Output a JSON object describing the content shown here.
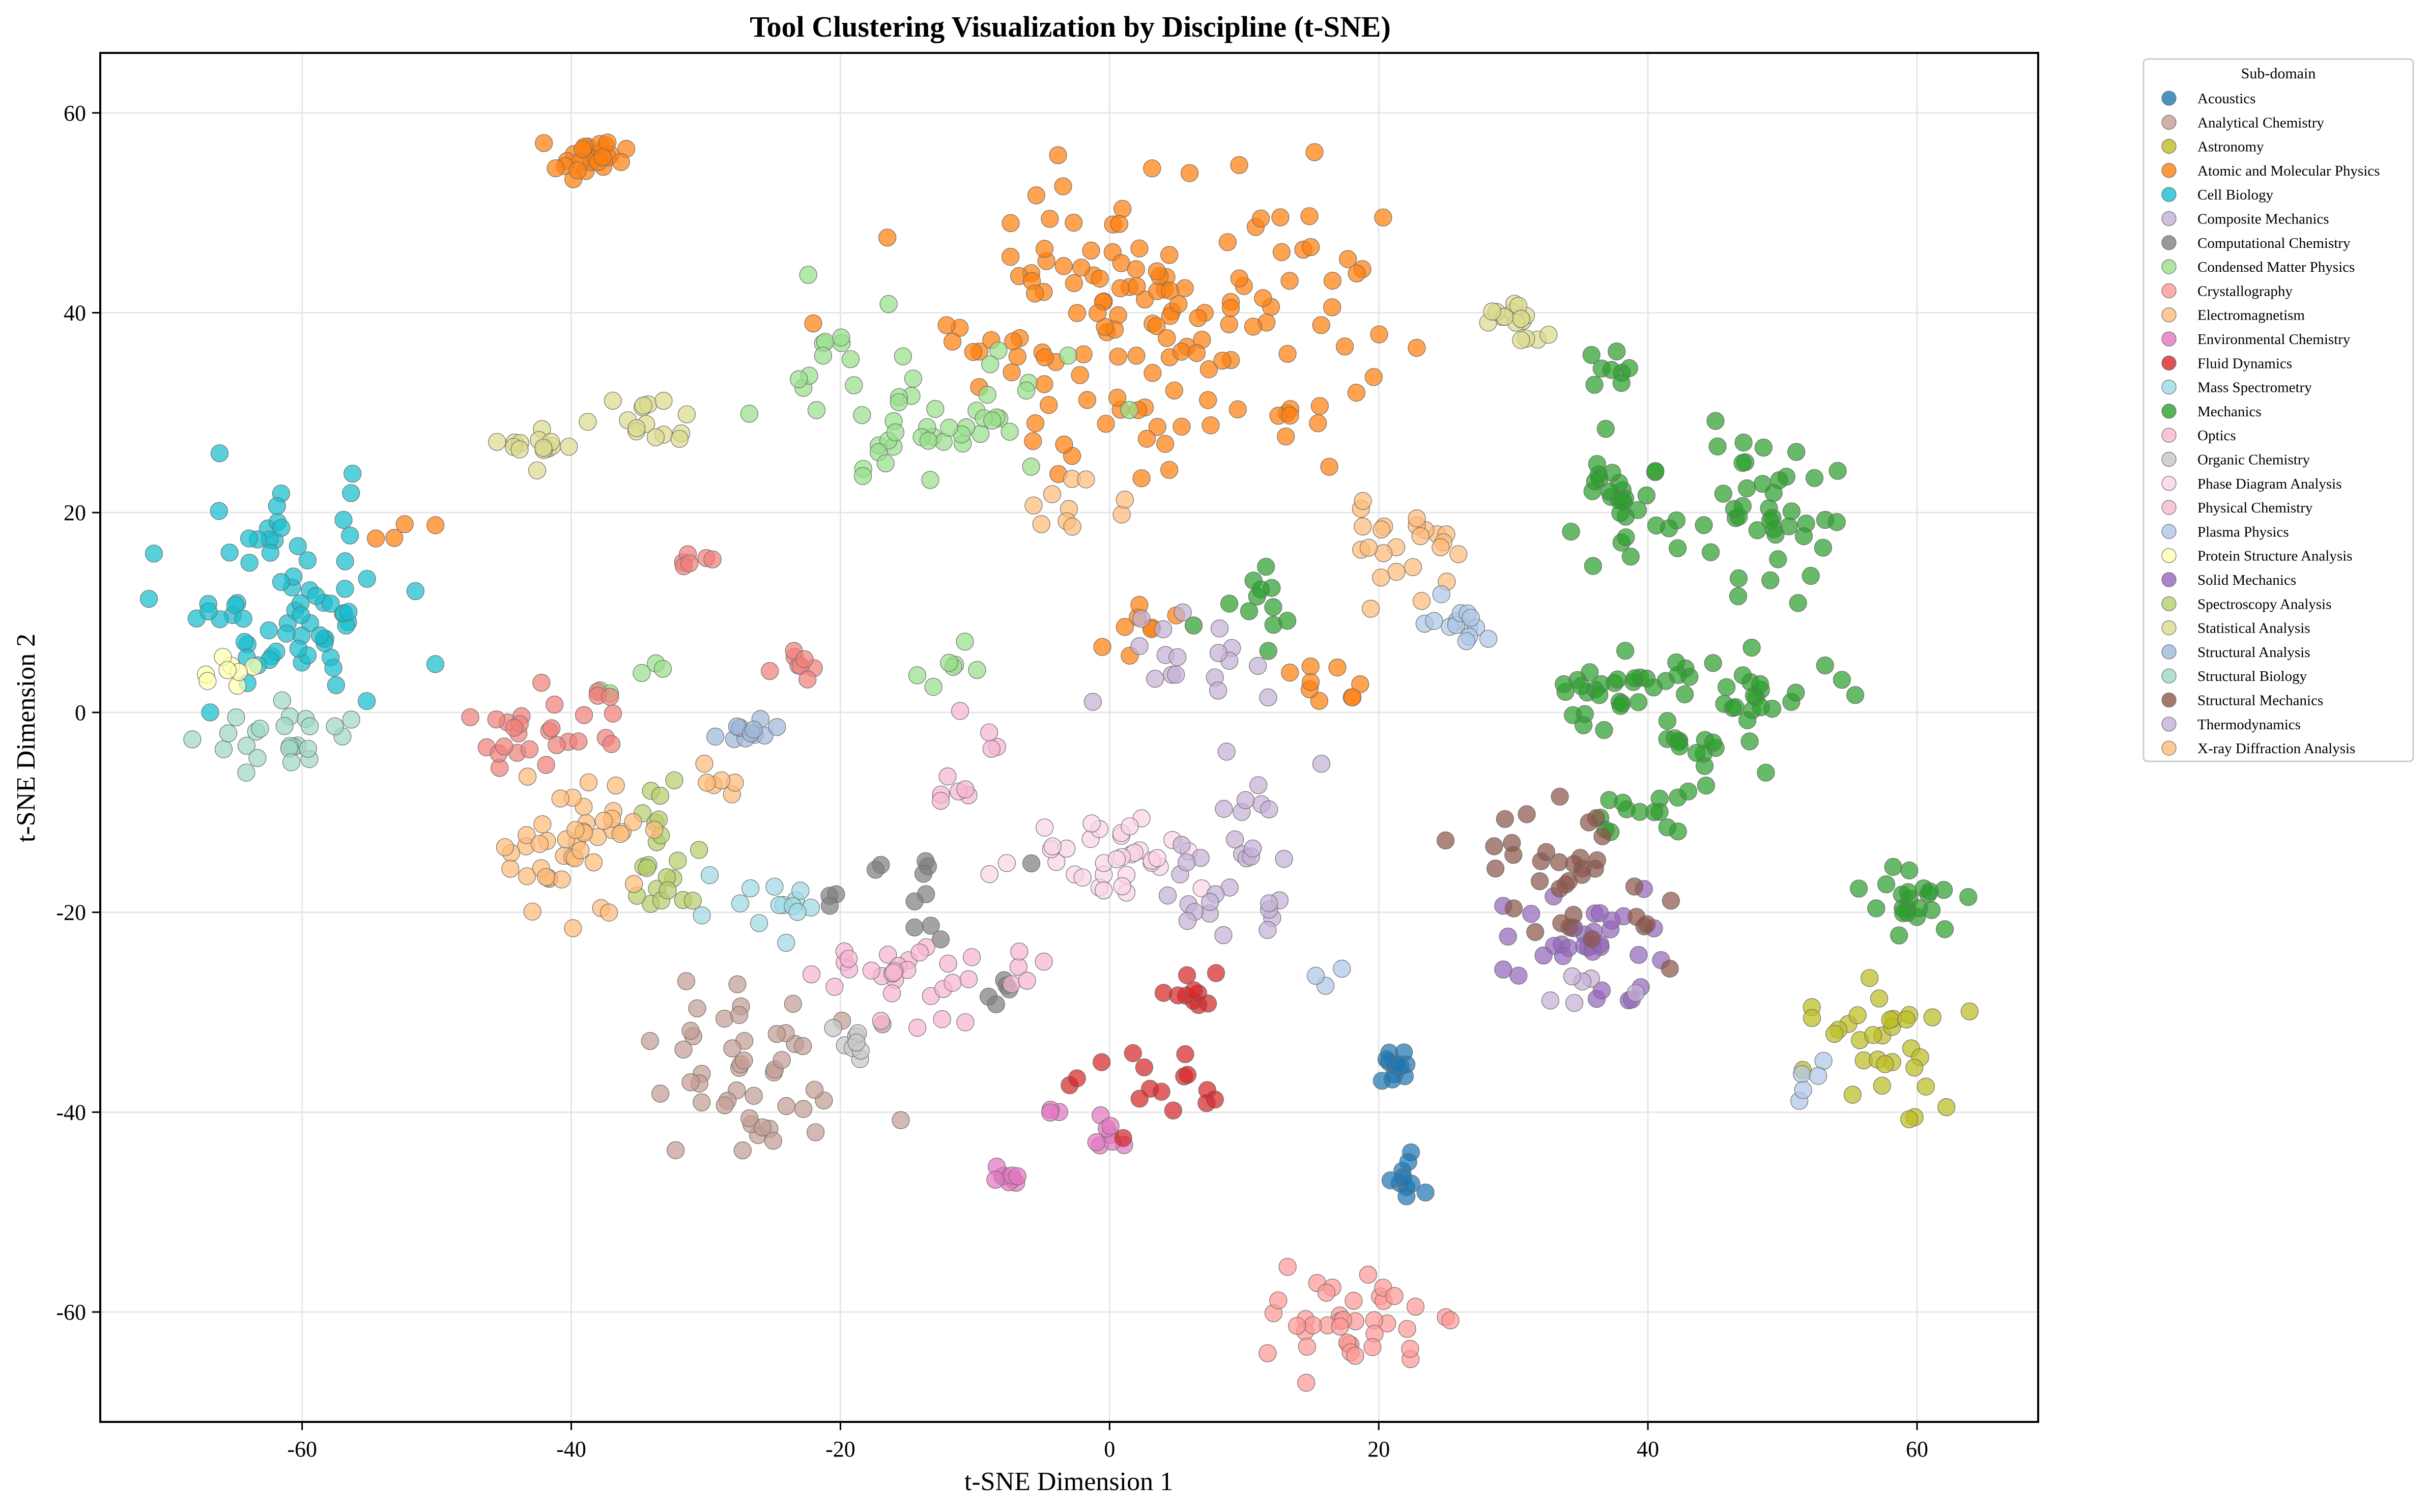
{
  "chart_data": {
    "type": "scatter",
    "title": "Tool Clustering Visualization by Discipline (t-SNE)",
    "xlabel": "t-SNE Dimension 1",
    "ylabel": "t-SNE Dimension 2",
    "xlim": [
      -75,
      69
    ],
    "ylim": [
      -71,
      66
    ],
    "xticks": [
      -60,
      -40,
      -20,
      0,
      20,
      40,
      60
    ],
    "yticks": [
      -60,
      -40,
      -20,
      0,
      20,
      40,
      60
    ],
    "grid": true,
    "legend": {
      "title": "Sub-domain",
      "placement": "outside-top-right"
    },
    "series": [
      {
        "name": "Acoustics",
        "color": "#1f77b4",
        "clusters": [
          {
            "cx": 21.5,
            "cy": -35.5,
            "sx": 1.0,
            "sy": 0.9,
            "n": 12
          },
          {
            "cx": 21.5,
            "cy": -47.0,
            "sx": 0.9,
            "sy": 1.0,
            "n": 10
          }
        ]
      },
      {
        "name": "Analytical Chemistry",
        "color": "#c49c94",
        "clusters": [
          {
            "cx": -26,
            "cy": -38,
            "sx": 4.5,
            "sy": 3.5,
            "n": 40
          },
          {
            "cx": -28,
            "cy": -29,
            "sx": 2.0,
            "sy": 1.5,
            "n": 8
          }
        ]
      },
      {
        "name": "Astronomy",
        "color": "#bcbd22",
        "clusters": [
          {
            "cx": 57,
            "cy": -34,
            "sx": 2.6,
            "sy": 3.5,
            "n": 32
          }
        ]
      },
      {
        "name": "Atomic and Molecular Physics",
        "color": "#ff7f0e",
        "clusters": [
          {
            "cx": 4,
            "cy": 40,
            "sx": 8.0,
            "sy": 8.0,
            "n": 150
          },
          {
            "cx": -38.5,
            "cy": 55.5,
            "sx": 1.3,
            "sy": 0.9,
            "n": 28
          },
          {
            "cx": -53,
            "cy": 18.5,
            "sx": 1.2,
            "sy": 0.8,
            "n": 4
          },
          {
            "cx": 2,
            "cy": 8,
            "sx": 1.5,
            "sy": 1.5,
            "n": 8
          },
          {
            "cx": 16,
            "cy": 3,
            "sx": 1.8,
            "sy": 1.4,
            "n": 9
          }
        ]
      },
      {
        "name": "Cell Biology",
        "color": "#17becf",
        "clusters": [
          {
            "cx": -61,
            "cy": 11,
            "sx": 4.2,
            "sy": 5.5,
            "n": 75
          }
        ]
      },
      {
        "name": "Composite Mechanics",
        "color": "#c5b0d5",
        "clusters": [
          {
            "cx": 5,
            "cy": 5,
            "sx": 2.5,
            "sy": 3.0,
            "n": 18
          },
          {
            "cx": 10,
            "cy": -8,
            "sx": 2.5,
            "sy": 2.5,
            "n": 12
          }
        ]
      },
      {
        "name": "Computational Chemistry",
        "color": "#7f7f7f",
        "clusters": [
          {
            "cx": -16,
            "cy": -18,
            "sx": 3.5,
            "sy": 3.0,
            "n": 14
          },
          {
            "cx": -9,
            "cy": -28,
            "sx": 1.5,
            "sy": 1.5,
            "n": 5
          }
        ]
      },
      {
        "name": "Condensed Matter Physics",
        "color": "#98df8a",
        "clusters": [
          {
            "cx": -14,
            "cy": 29,
            "sx": 6.0,
            "sy": 4.0,
            "n": 45
          },
          {
            "cx": -21,
            "cy": 37,
            "sx": 1.5,
            "sy": 3.0,
            "n": 10
          },
          {
            "cx": -12,
            "cy": 4,
            "sx": 2.5,
            "sy": 1.5,
            "n": 7
          },
          {
            "cx": -36,
            "cy": 3,
            "sx": 1.5,
            "sy": 1.0,
            "n": 5
          }
        ]
      },
      {
        "name": "Crystallography",
        "color": "#ff9896",
        "clusters": [
          {
            "cx": 18,
            "cy": -61,
            "sx": 2.8,
            "sy": 2.5,
            "n": 40
          }
        ]
      },
      {
        "name": "Electromagnetism",
        "color": "#ffbb78",
        "clusters": [
          {
            "cx": 22,
            "cy": 17,
            "sx": 2.2,
            "sy": 2.2,
            "n": 24
          },
          {
            "cx": -2,
            "cy": 20,
            "sx": 2.0,
            "sy": 1.8,
            "n": 10
          }
        ]
      },
      {
        "name": "Environmental Chemistry",
        "color": "#e377c2",
        "clusters": [
          {
            "cx": 0,
            "cy": -42,
            "sx": 0.9,
            "sy": 0.8,
            "n": 8
          },
          {
            "cx": -7,
            "cy": -46.5,
            "sx": 1.0,
            "sy": 0.7,
            "n": 9
          },
          {
            "cx": -4.5,
            "cy": -40,
            "sx": 0.5,
            "sy": 0.5,
            "n": 3
          }
        ]
      },
      {
        "name": "Fluid Dynamics",
        "color": "#d62728",
        "clusters": [
          {
            "cx": 6,
            "cy": -28,
            "sx": 1.3,
            "sy": 1.5,
            "n": 10
          },
          {
            "cx": 4,
            "cy": -38,
            "sx": 3.0,
            "sy": 1.8,
            "n": 16
          }
        ]
      },
      {
        "name": "Mass Spectrometry",
        "color": "#9edae5",
        "clusters": [
          {
            "cx": -26,
            "cy": -20,
            "sx": 2.5,
            "sy": 1.3,
            "n": 14
          }
        ]
      },
      {
        "name": "Mechanics",
        "color": "#2ca02c",
        "clusters": [
          {
            "cx": 38,
            "cy": 20,
            "sx": 2.0,
            "sy": 3.0,
            "n": 30
          },
          {
            "cx": 48,
            "cy": 20,
            "sx": 3.0,
            "sy": 3.5,
            "n": 40
          },
          {
            "cx": 38,
            "cy": 2,
            "sx": 3.0,
            "sy": 2.0,
            "n": 30
          },
          {
            "cx": 48,
            "cy": 2,
            "sx": 3.5,
            "sy": 2.0,
            "n": 25
          },
          {
            "cx": 45,
            "cy": -4,
            "sx": 2.0,
            "sy": 1.0,
            "n": 12
          },
          {
            "cx": 39,
            "cy": -10,
            "sx": 2.5,
            "sy": 1.2,
            "n": 14
          },
          {
            "cx": 60,
            "cy": -19,
            "sx": 1.8,
            "sy": 1.8,
            "n": 22
          },
          {
            "cx": 37,
            "cy": 34,
            "sx": 1.2,
            "sy": 1.2,
            "n": 8
          },
          {
            "cx": 11,
            "cy": 14,
            "sx": 2.0,
            "sy": 3.0,
            "n": 12
          }
        ]
      },
      {
        "name": "Optics",
        "color": "#f7b6d2",
        "clusters": [
          {
            "cx": -14,
            "cy": -28,
            "sx": 3.0,
            "sy": 3.5,
            "n": 22
          },
          {
            "cx": -7,
            "cy": -26,
            "sx": 2.0,
            "sy": 1.5,
            "n": 6
          }
        ]
      },
      {
        "name": "Organic Chemistry",
        "color": "#c7c7c7",
        "clusters": [
          {
            "cx": -18,
            "cy": -33,
            "sx": 1.5,
            "sy": 1.5,
            "n": 8
          }
        ]
      },
      {
        "name": "Phase Diagram Analysis",
        "color": "#f9d4e8",
        "clusters": [
          {
            "cx": 0,
            "cy": -14,
            "sx": 3.5,
            "sy": 2.0,
            "n": 35
          }
        ]
      },
      {
        "name": "Physical Chemistry",
        "color": "#f7b6d2",
        "clusters": [
          {
            "cx": -12,
            "cy": -8,
            "sx": 1.0,
            "sy": 1.5,
            "n": 6
          },
          {
            "cx": -9,
            "cy": -2,
            "sx": 1.0,
            "sy": 1.0,
            "n": 4
          },
          {
            "cx": -20,
            "cy": -25,
            "sx": 2.0,
            "sy": 2.0,
            "n": 6
          }
        ]
      },
      {
        "name": "Plasma Physics",
        "color": "#aec7e8",
        "clusters": [
          {
            "cx": 26,
            "cy": 9,
            "sx": 1.2,
            "sy": 1.0,
            "n": 14
          },
          {
            "cx": 52,
            "cy": -37,
            "sx": 0.8,
            "sy": 1.2,
            "n": 5
          },
          {
            "cx": 16,
            "cy": -26,
            "sx": 0.6,
            "sy": 0.4,
            "n": 3
          }
        ]
      },
      {
        "name": "Protein Structure Analysis",
        "color": "#ffffb2",
        "clusters": [
          {
            "cx": -65,
            "cy": 4,
            "sx": 1.3,
            "sy": 1.0,
            "n": 8
          }
        ]
      },
      {
        "name": "Solid Mechanics",
        "color": "#9467bd",
        "clusters": [
          {
            "cx": 35,
            "cy": -22,
            "sx": 3.5,
            "sy": 2.5,
            "n": 30
          },
          {
            "cx": 39,
            "cy": -28,
            "sx": 1.3,
            "sy": 0.8,
            "n": 5
          }
        ]
      },
      {
        "name": "Spectroscopy Analysis",
        "color": "#b5cf6b",
        "clusters": [
          {
            "cx": -33,
            "cy": -15,
            "sx": 2.0,
            "sy": 3.0,
            "n": 22
          }
        ]
      },
      {
        "name": "Statistical Analysis",
        "color": "#dbdb8d",
        "clusters": [
          {
            "cx": -42,
            "cy": 27,
            "sx": 1.3,
            "sy": 1.2,
            "n": 16
          },
          {
            "cx": -34,
            "cy": 29,
            "sx": 1.4,
            "sy": 1.4,
            "n": 14
          },
          {
            "cx": 30,
            "cy": 39,
            "sx": 1.2,
            "sy": 1.2,
            "n": 16
          }
        ]
      },
      {
        "name": "Structural Analysis",
        "color": "#9fb9d8",
        "clusters": [
          {
            "cx": -27,
            "cy": -2,
            "sx": 1.5,
            "sy": 1.0,
            "n": 12
          }
        ]
      },
      {
        "name": "Structural Biology",
        "color": "#9fd8c5",
        "clusters": [
          {
            "cx": -61,
            "cy": -3,
            "sx": 3.0,
            "sy": 2.0,
            "n": 24
          }
        ]
      },
      {
        "name": "Structural Mechanics",
        "color": "#8c564b",
        "clusters": [
          {
            "cx": 34,
            "cy": -15,
            "sx": 3.0,
            "sy": 2.5,
            "n": 28
          },
          {
            "cx": 38,
            "cy": -22,
            "sx": 2.0,
            "sy": 1.5,
            "n": 8
          }
        ]
      },
      {
        "name": "Thermodynamics",
        "color": "#c5b0d5",
        "clusters": [
          {
            "cx": 8,
            "cy": -17,
            "sx": 3.0,
            "sy": 3.0,
            "n": 20
          },
          {
            "cx": 35,
            "cy": -28,
            "sx": 1.5,
            "sy": 1.0,
            "n": 6
          }
        ]
      },
      {
        "name": "X-ray Diffraction Analysis",
        "color": "#ffbb78",
        "clusters": [
          {
            "cx": -40,
            "cy": -13,
            "sx": 3.0,
            "sy": 3.5,
            "n": 45
          },
          {
            "cx": -29,
            "cy": -7,
            "sx": 1.0,
            "sy": 1.0,
            "n": 6
          }
        ]
      }
    ],
    "extra_red_clusters": [
      {
        "series": "Crystallography",
        "cx": -42,
        "cy": -2,
        "sx": 3.0,
        "sy": 2.0,
        "n": 28
      },
      {
        "series": "Crystallography",
        "cx": -23,
        "cy": 4.5,
        "sx": 1.0,
        "sy": 0.8,
        "n": 8
      },
      {
        "series": "Crystallography",
        "cx": -31,
        "cy": 15,
        "sx": 1.0,
        "sy": 0.4,
        "n": 6
      }
    ]
  }
}
